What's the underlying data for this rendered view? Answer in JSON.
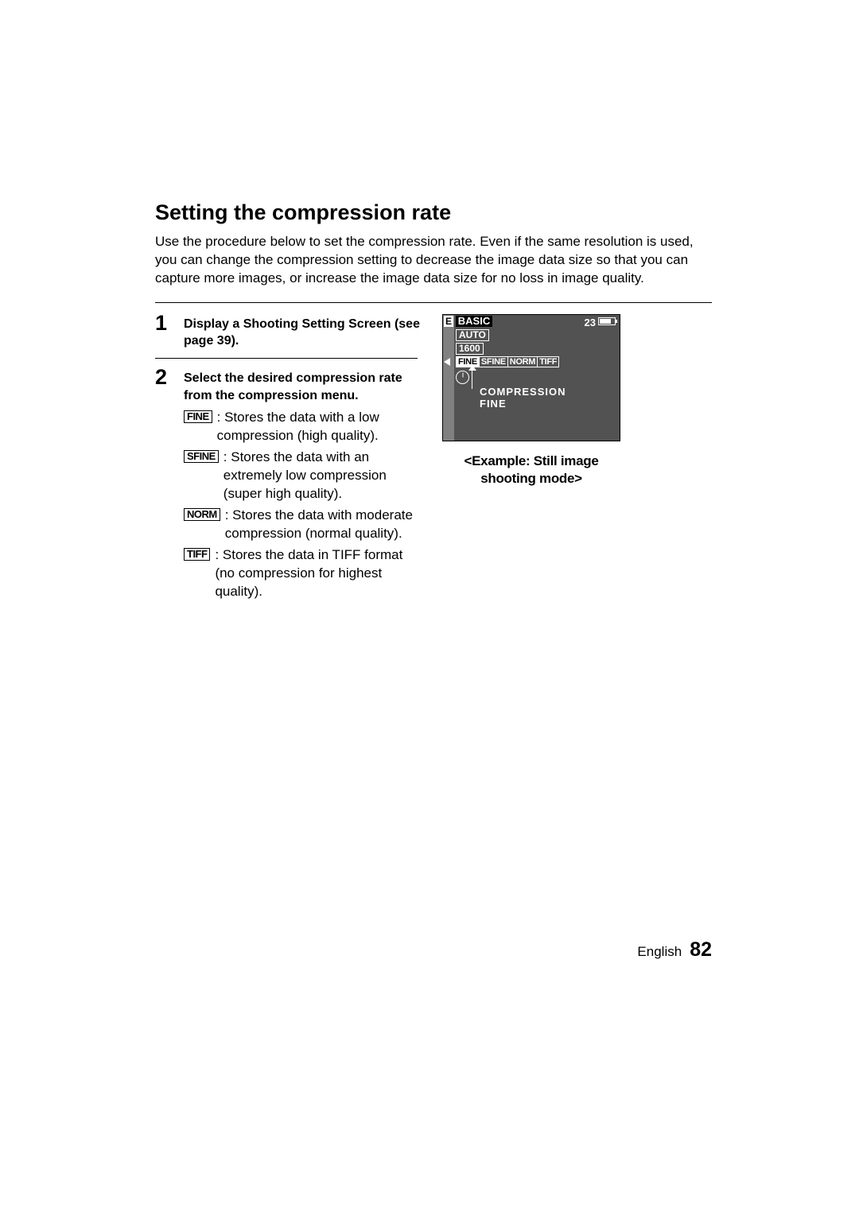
{
  "heading": "Setting the compression rate",
  "intro": "Use the procedure below to set the compression rate. Even if the same resolution is used, you can change the compression setting to decrease the image data size so that you can capture more images, or increase the image data size for no loss in image quality.",
  "steps": {
    "s1": {
      "num": "1",
      "text": "Display a Shooting Setting Screen (see page 39)."
    },
    "s2": {
      "num": "2",
      "text": "Select the desired compression rate from the compression menu."
    }
  },
  "options": {
    "fine": {
      "tag": "FINE",
      "desc": "Stores the data with a low compression (high quality)."
    },
    "sfine": {
      "tag": "SFINE",
      "desc": "Stores the data with an extremely low compression (super high quality)."
    },
    "norm": {
      "tag": "NORM",
      "desc": "Stores the data with moderate compression (normal quality)."
    },
    "tiff": {
      "tag": "TIFF",
      "desc": "Stores the data in TIFF format (no compression for highest quality)."
    }
  },
  "lcd": {
    "corner": "E",
    "title": "BASIC",
    "count": "23",
    "auto": "AUTO",
    "res": "1600",
    "comp": {
      "fine": "FINE",
      "sfine": "SFINE",
      "norm": "NORM",
      "tiff": "TIFF"
    },
    "caption1": "COMPRESSION",
    "caption2": "FINE"
  },
  "example_caption": "<Example: Still image shooting mode>",
  "footer": {
    "lang": "English",
    "page": "82"
  },
  "colors": {
    "page_bg": "#ffffff",
    "text": "#000000",
    "lcd_bg": "#525252",
    "lcd_strip": "#808080",
    "lcd_fg": "#ffffff"
  }
}
